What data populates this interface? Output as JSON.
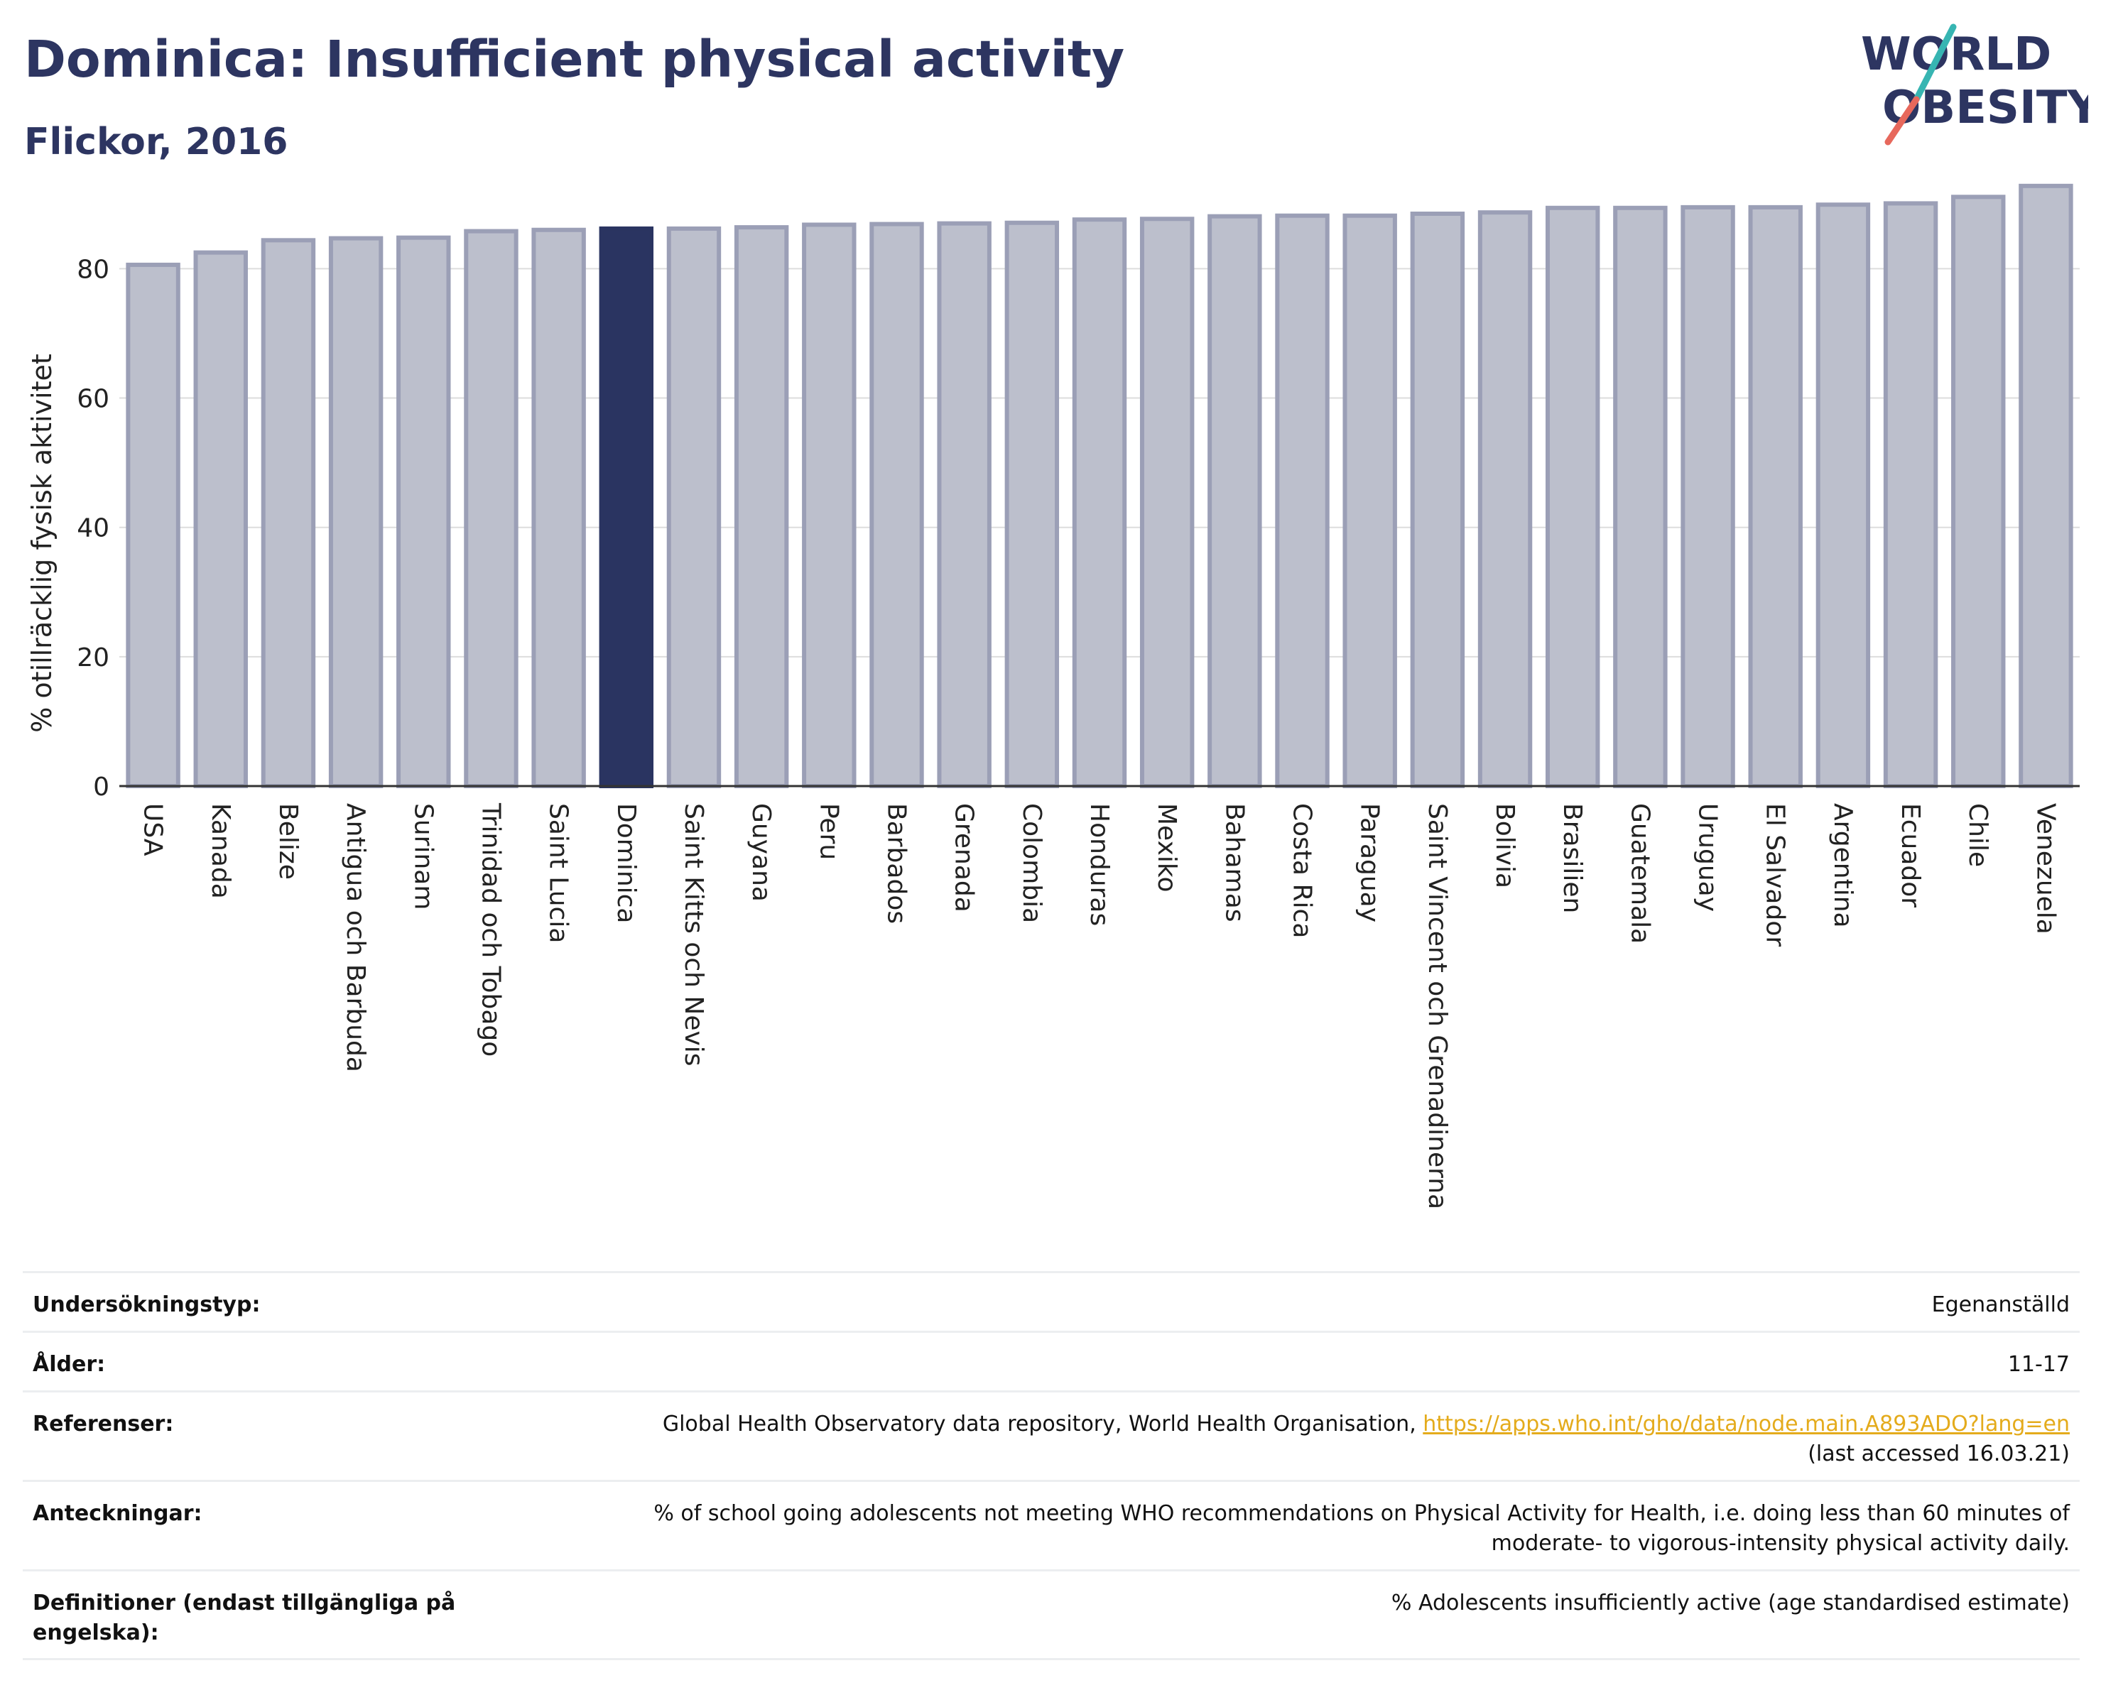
{
  "header": {
    "title": "Dominica: Insufficient physical activity",
    "subtitle": "Flickor, 2016"
  },
  "logo": {
    "line1": "WORLD",
    "line2": "OBESITY"
  },
  "chart_data": {
    "type": "bar",
    "title": "Dominica: Insufficient physical activity",
    "subtitle": "Flickor, 2016",
    "xlabel": "",
    "ylabel": "% otillräcklig fysisk aktivitet",
    "ylim": [
      0,
      93
    ],
    "yticks": [
      0,
      20,
      40,
      60,
      80
    ],
    "grid": true,
    "highlight": "Dominica",
    "colors": {
      "bar": "#bcbfcc",
      "bar_edge": "#9b9fb6",
      "highlight": "#2a3461",
      "axis": "#333333",
      "grid": "#dddddd"
    },
    "categories": [
      "USA",
      "Kanada",
      "Belize",
      "Antigua och Barbuda",
      "Surinam",
      "Trinidad och Tobago",
      "Saint Lucia",
      "Dominica",
      "Saint Kitts och Nevis",
      "Guyana",
      "Peru",
      "Barbados",
      "Grenada",
      "Colombia",
      "Honduras",
      "Mexiko",
      "Bahamas",
      "Costa Rica",
      "Paraguay",
      "Saint Vincent och Grenadinerna",
      "Bolivia",
      "Brasilien",
      "Guatemala",
      "Uruguay",
      "El Salvador",
      "Argentina",
      "Ecuador",
      "Chile",
      "Venezuela"
    ],
    "values": [
      80.6,
      82.5,
      84.4,
      84.7,
      84.8,
      85.8,
      86.0,
      86.2,
      86.2,
      86.4,
      86.8,
      86.9,
      87.0,
      87.1,
      87.6,
      87.7,
      88.1,
      88.2,
      88.2,
      88.5,
      88.7,
      89.4,
      89.4,
      89.5,
      89.5,
      89.9,
      90.1,
      91.1,
      92.8
    ]
  },
  "info": {
    "rows": [
      {
        "label": "Undersökningstyp:",
        "value": "Egenanställd"
      },
      {
        "label": "Ålder:",
        "value": "11-17"
      },
      {
        "label": "Referenser:",
        "value": "Global Health Observatory data repository, World Health Organisation, ",
        "link": "https://apps.who.int/gho/data/node.main.A893ADO?lang=en",
        "note": "(last accessed 16.03.21)"
      },
      {
        "label": "Anteckningar:",
        "value": "% of school going adolescents not meeting WHO recommendations on Physical Activity for Health, i.e. doing less than 60 minutes of moderate- to vigorous-intensity physical activity daily."
      },
      {
        "label": "Definitioner (endast tillgängliga på engelska):",
        "value": "% Adolescents insufficiently active (age standardised estimate)"
      }
    ]
  }
}
